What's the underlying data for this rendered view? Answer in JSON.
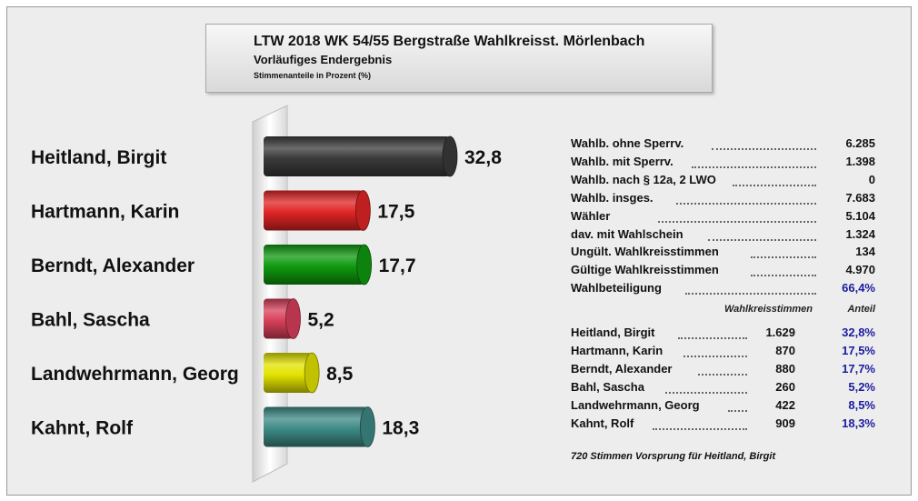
{
  "header": {
    "title": "LTW 2018 WK 54/55 Bergstraße Wahlkreisst. Mörlenbach",
    "subtitle": "Vorläufiges Endergebnis",
    "note": "Stimmenanteile in Prozent (%)"
  },
  "chart_data": {
    "type": "bar",
    "orientation": "horizontal",
    "categories": [
      "Heitland, Birgit",
      "Hartmann, Karin",
      "Berndt, Alexander",
      "Bahl, Sascha",
      "Landwehrmann, Georg",
      "Kahnt, Rolf"
    ],
    "values": [
      32.8,
      17.5,
      17.7,
      5.2,
      8.5,
      18.3
    ],
    "value_labels": [
      "32,8",
      "17,5",
      "17,7",
      "5,2",
      "8,5",
      "18,3"
    ],
    "colors": [
      "#3a3a3a",
      "#e02424",
      "#0f9a0f",
      "#d8405a",
      "#e3e300",
      "#3d8a85"
    ],
    "xlim": [
      0,
      35
    ],
    "grid": false,
    "legend": "none"
  },
  "stats": [
    {
      "label": "Wahlb. ohne Sperrv.",
      "value": "6.285"
    },
    {
      "label": "Wahlb. mit Sperrv.",
      "value": "1.398"
    },
    {
      "label": "Wahlb. nach § 12a, 2 LWO",
      "value": "0"
    },
    {
      "label": "Wahlb. insges.",
      "value": "7.683"
    },
    {
      "label": "Wähler",
      "value": "5.104"
    },
    {
      "label": "dav. mit Wahlschein",
      "value": "1.324"
    },
    {
      "label": "Ungült. Wahlkreisstimmen",
      "value": "134"
    },
    {
      "label": "Gültige Wahlkreisstimmen",
      "value": "4.970"
    },
    {
      "label": "Wahlbeteiligung",
      "value": "66,4%"
    }
  ],
  "results_header": {
    "votes": "Wahlkreisstimmen",
    "share": "Anteil"
  },
  "results": [
    {
      "name": "Heitland, Birgit",
      "votes": "1.629",
      "share": "32,8%"
    },
    {
      "name": "Hartmann, Karin",
      "votes": "870",
      "share": "17,5%"
    },
    {
      "name": "Berndt, Alexander",
      "votes": "880",
      "share": "17,7%"
    },
    {
      "name": "Bahl, Sascha",
      "votes": "260",
      "share": "5,2%"
    },
    {
      "name": "Landwehrmann, Georg",
      "votes": "422",
      "share": "8,5%"
    },
    {
      "name": "Kahnt, Rolf",
      "votes": "909",
      "share": "18,3%"
    }
  ],
  "footnote": "720 Stimmen Vorsprung für Heitland, Birgit"
}
